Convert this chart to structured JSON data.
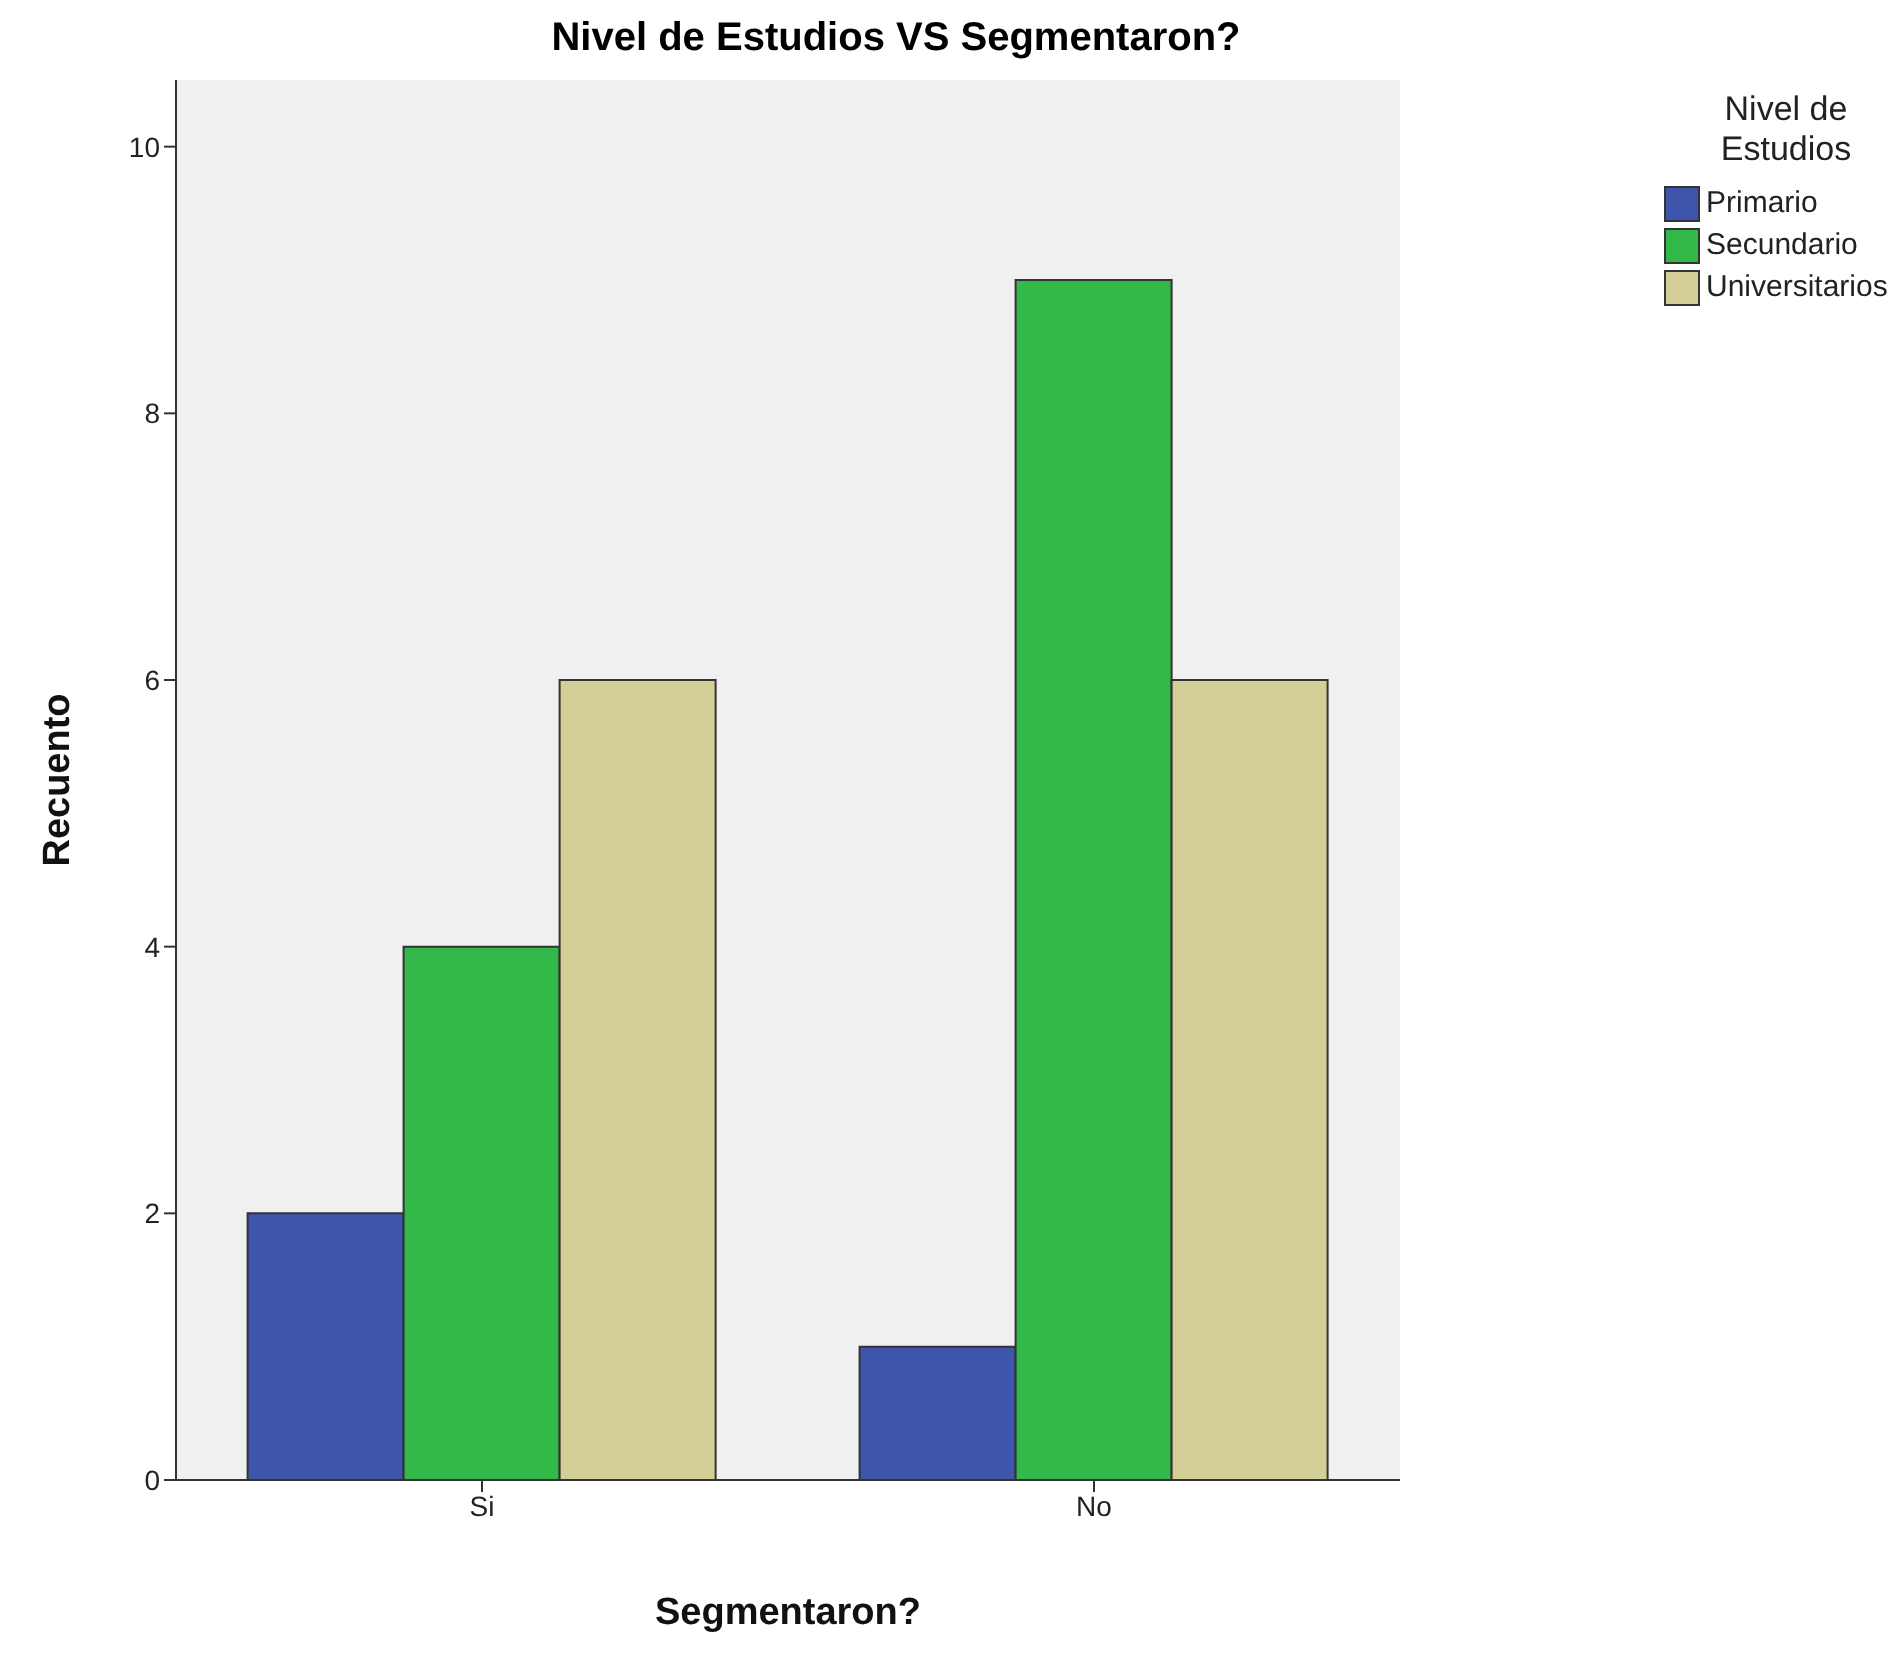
{
  "chart_data": {
    "type": "bar",
    "title": "Nivel de Estudios VS Segmentaron?",
    "xlabel": "Segmentaron?",
    "ylabel": "Recuento",
    "legend_title": "Nivel de Estudios",
    "categories": [
      "Si",
      "No"
    ],
    "series": [
      {
        "name": "Primario",
        "color": "#3d56ac",
        "values": [
          2,
          1
        ]
      },
      {
        "name": "Secundario",
        "color": "#33b84a",
        "values": [
          4,
          9
        ]
      },
      {
        "name": "Universitarios",
        "color": "#d4cf96",
        "values": [
          6,
          6
        ]
      }
    ],
    "ylim": [
      0,
      10.5
    ],
    "yticks": [
      0,
      2,
      4,
      6,
      8,
      10
    ],
    "grid": false,
    "legend": "top right"
  }
}
